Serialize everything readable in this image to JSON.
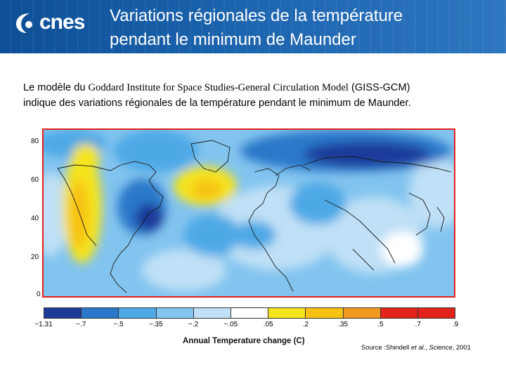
{
  "header": {
    "logo_text": "cnes",
    "title_line1": "Variations régionales de la température",
    "title_line2": "pendant le minimum de Maunder"
  },
  "intro": {
    "part1": "Le modèle du ",
    "model_name": "Goddard Institute for Space Studies-General Circulation Model",
    "part2": " (GISS-GCM)",
    "line2": "indique des variations régionales de la température pendant le minimum de  Maunder."
  },
  "map": {
    "y_ticks": [
      "80",
      "60",
      "40",
      "20",
      "0"
    ]
  },
  "colorbar": {
    "colors": [
      "#1c3a9a",
      "#2a78c9",
      "#4ea9e6",
      "#82c4ef",
      "#bfe0f6",
      "#ffffff",
      "#f5e41c",
      "#f7c215",
      "#f29a1d",
      "#e3221c",
      "#e3221c",
      "#8b1a14"
    ],
    "ticks": [
      "−1.31",
      "−.7",
      "−.5",
      "−.35",
      "−.2",
      "−.05",
      ".05",
      ".2",
      ".35",
      ".5",
      ".7",
      ".9"
    ],
    "label": "Annual Temperature change (C)"
  },
  "source": {
    "prefix": "Source :Shindell ",
    "etal": "et al.",
    "mid": ", ",
    "journal": "Science",
    "year": ", 2001"
  }
}
